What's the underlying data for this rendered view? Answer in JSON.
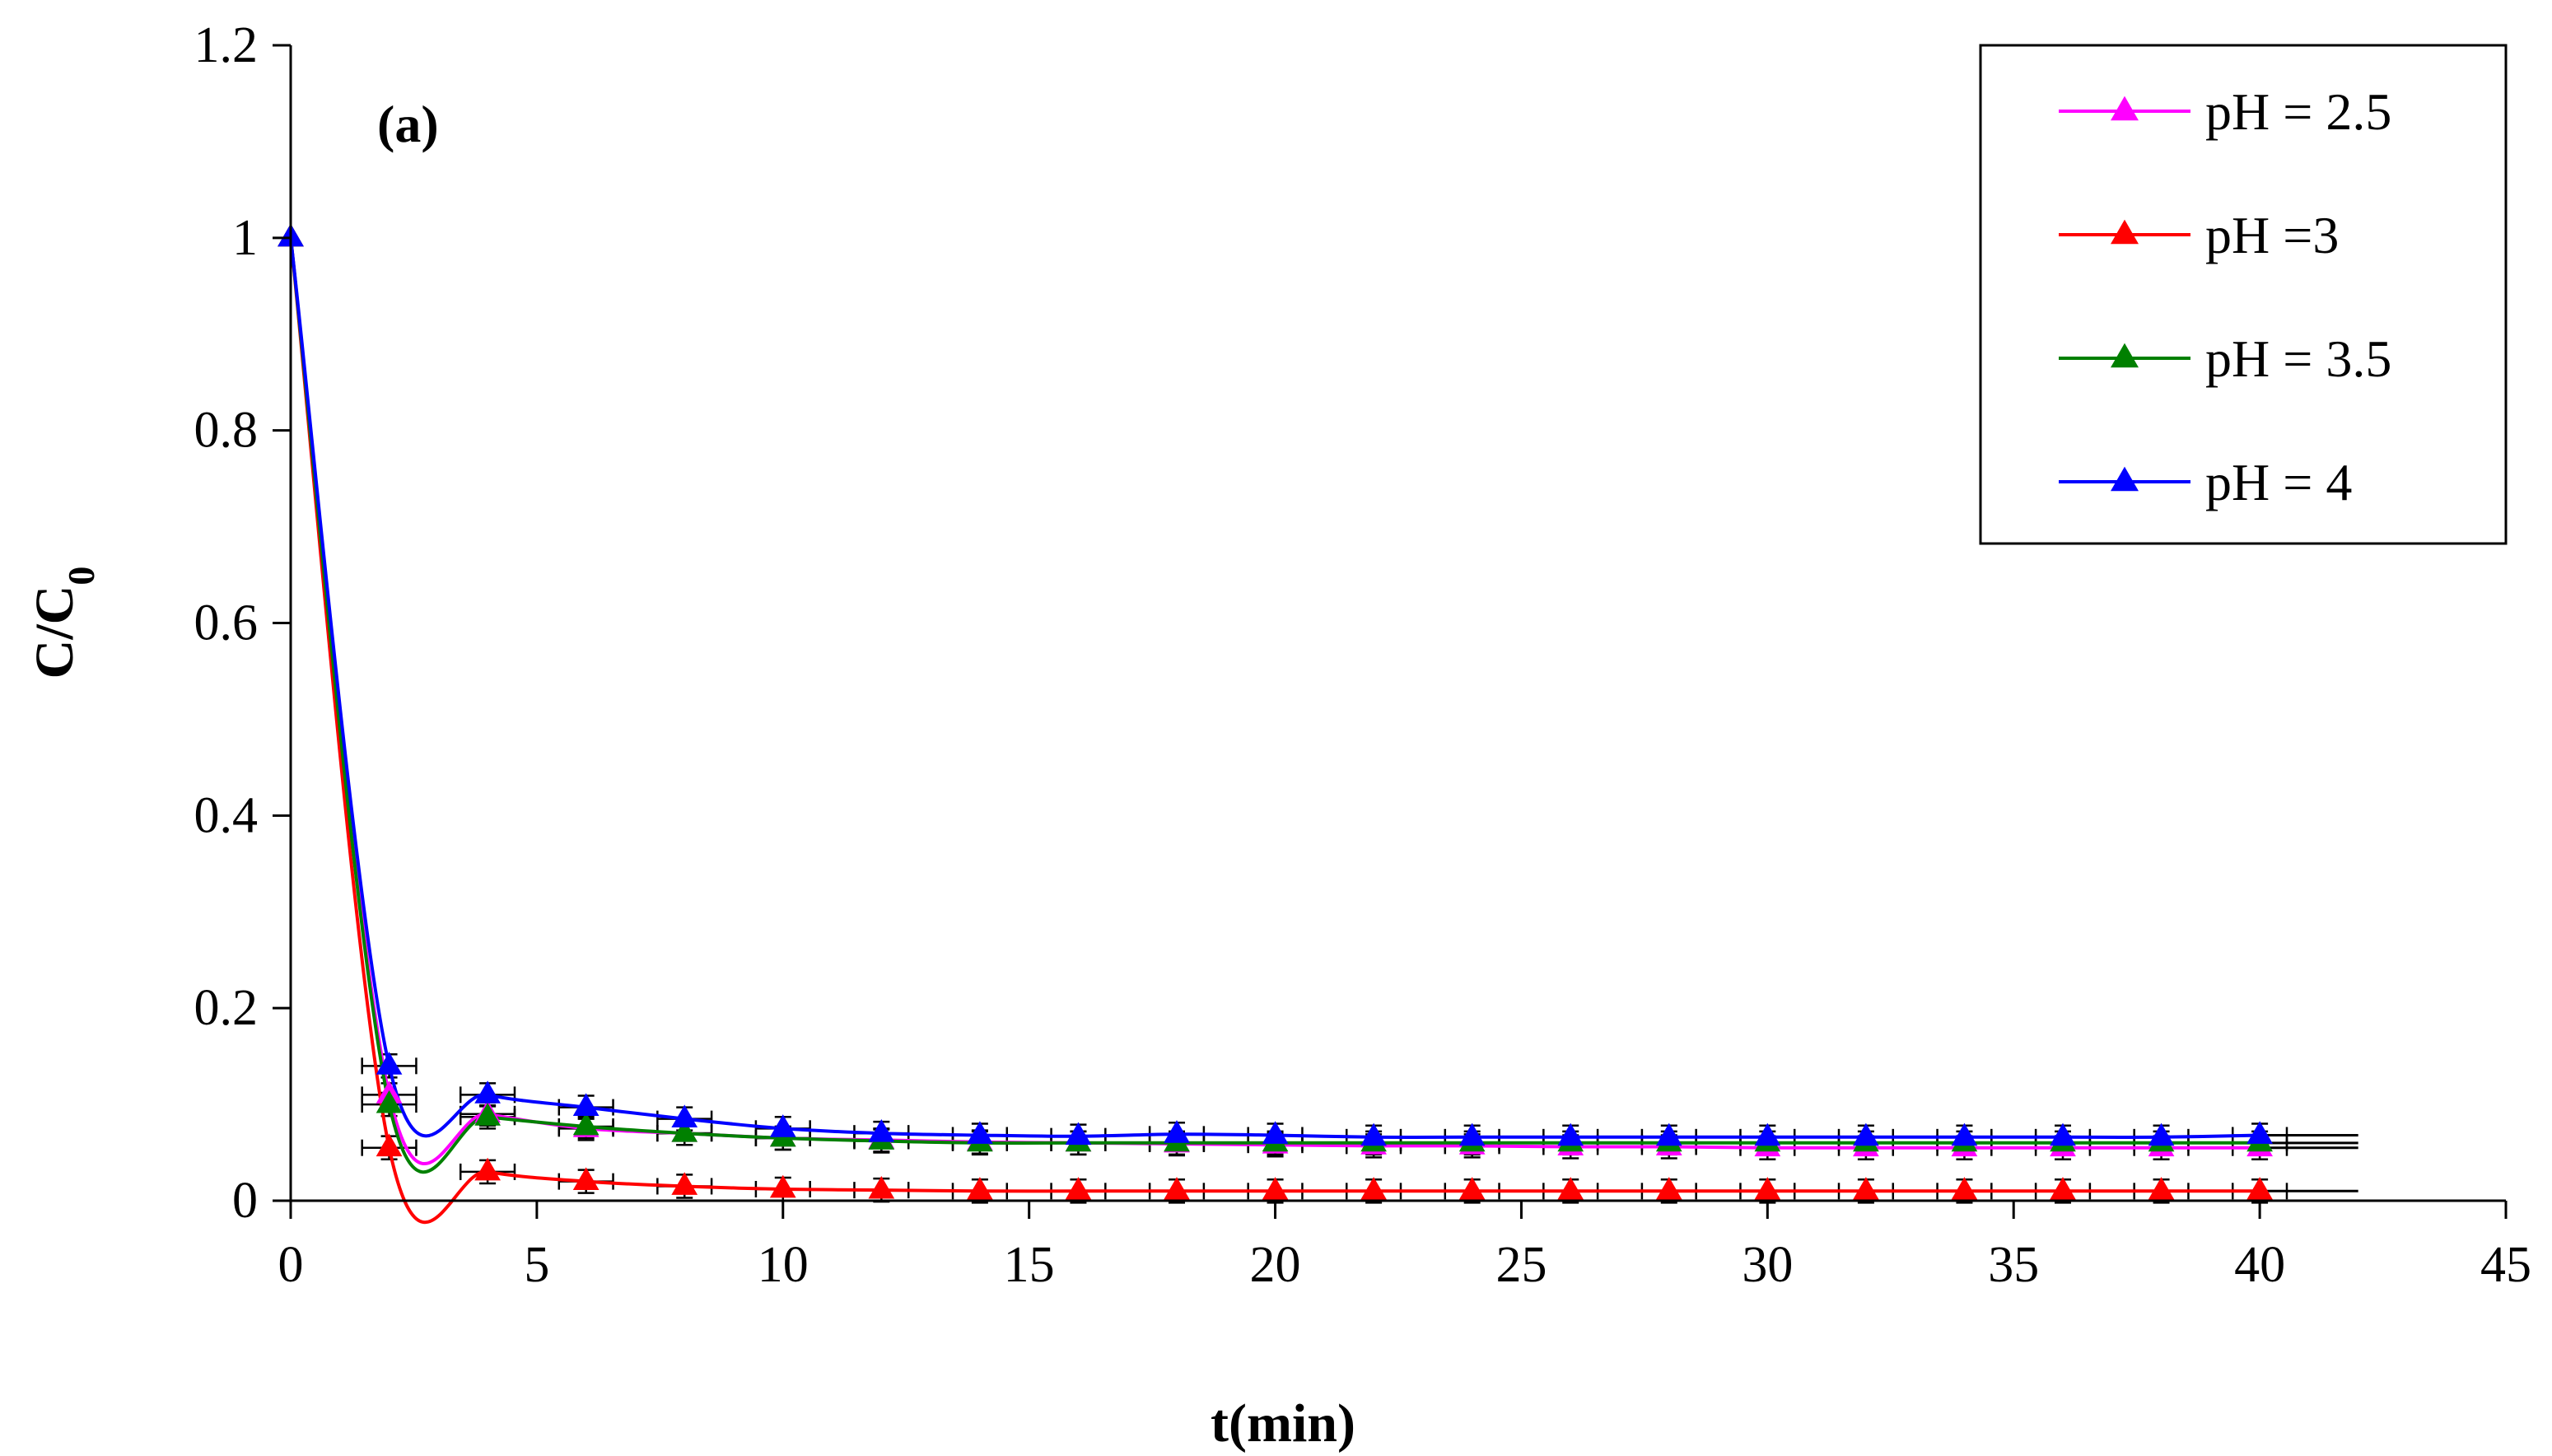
{
  "chart_data": {
    "type": "line",
    "panel_label": "(a)",
    "xlabel": "t(min)",
    "ylabel_main": "C/C",
    "ylabel_sub": "0",
    "xlim": [
      0,
      45
    ],
    "ylim": [
      0,
      1.2
    ],
    "xticks": [
      "0",
      "5",
      "10",
      "15",
      "20",
      "25",
      "30",
      "35",
      "40",
      "45"
    ],
    "yticks": [
      "0",
      "0.2",
      "0.4",
      "0.6",
      "0.8",
      "1",
      "1.2"
    ],
    "grid": false,
    "legend_position": "top-right",
    "x": [
      0,
      2,
      4,
      6,
      8,
      10,
      12,
      14,
      16,
      18,
      20,
      22,
      24,
      26,
      28,
      30,
      32,
      34,
      36,
      38,
      40
    ],
    "series": [
      {
        "name": "pH = 2.5",
        "color": "#ff00ff",
        "values": [
          1.0,
          0.11,
          0.09,
          0.075,
          0.07,
          0.065,
          0.063,
          0.061,
          0.06,
          0.059,
          0.058,
          0.057,
          0.057,
          0.056,
          0.056,
          0.055,
          0.055,
          0.055,
          0.055,
          0.055,
          0.055
        ]
      },
      {
        "name": "pH =3",
        "color": "#ff0000",
        "values": [
          1.0,
          0.055,
          0.03,
          0.02,
          0.015,
          0.012,
          0.011,
          0.01,
          0.01,
          0.01,
          0.01,
          0.01,
          0.01,
          0.01,
          0.01,
          0.01,
          0.01,
          0.01,
          0.01,
          0.01,
          0.01
        ]
      },
      {
        "name": "pH = 3.5",
        "color": "#008000",
        "values": [
          1.0,
          0.1,
          0.087,
          0.077,
          0.07,
          0.065,
          0.062,
          0.06,
          0.06,
          0.06,
          0.06,
          0.06,
          0.06,
          0.06,
          0.06,
          0.06,
          0.06,
          0.06,
          0.06,
          0.06,
          0.06
        ]
      },
      {
        "name": "pH = 4",
        "color": "#0000ff",
        "values": [
          1.0,
          0.14,
          0.11,
          0.097,
          0.085,
          0.075,
          0.07,
          0.068,
          0.067,
          0.069,
          0.068,
          0.066,
          0.066,
          0.066,
          0.066,
          0.066,
          0.066,
          0.066,
          0.066,
          0.066,
          0.068
        ]
      }
    ]
  }
}
